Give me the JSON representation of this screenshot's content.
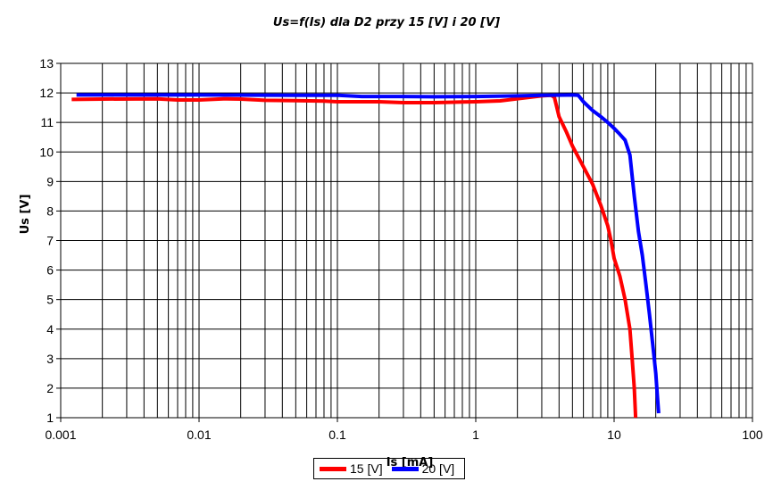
{
  "chart_data": {
    "type": "line",
    "title": "Us=f(Is) dla D2 przy 15 [V] i 20 [V]",
    "xlabel": "Is [mA]",
    "ylabel": "Us [V]",
    "x_scale": "log",
    "xlim": [
      0.001,
      100
    ],
    "ylim": [
      1,
      13
    ],
    "x_ticks": [
      "0.001",
      "0.01",
      "0.1",
      "1",
      "10",
      "100"
    ],
    "y_ticks": [
      "1",
      "2",
      "3",
      "4",
      "5",
      "6",
      "7",
      "8",
      "9",
      "10",
      "11",
      "12",
      "13"
    ],
    "grid": true,
    "legend_position": "bottom",
    "series": [
      {
        "name": "15 [V]",
        "color": "#ff0000",
        "points": [
          [
            0.0012,
            11.78
          ],
          [
            0.002,
            11.79
          ],
          [
            0.005,
            11.8
          ],
          [
            0.007,
            11.76
          ],
          [
            0.01,
            11.76
          ],
          [
            0.015,
            11.8
          ],
          [
            0.02,
            11.79
          ],
          [
            0.03,
            11.75
          ],
          [
            0.05,
            11.74
          ],
          [
            0.08,
            11.72
          ],
          [
            0.1,
            11.7
          ],
          [
            0.2,
            11.7
          ],
          [
            0.3,
            11.67
          ],
          [
            0.5,
            11.67
          ],
          [
            0.8,
            11.69
          ],
          [
            1.0,
            11.7
          ],
          [
            1.5,
            11.73
          ],
          [
            2.0,
            11.8
          ],
          [
            3.0,
            11.9
          ],
          [
            3.5,
            11.92
          ],
          [
            3.7,
            11.85
          ],
          [
            4.0,
            11.2
          ],
          [
            4.5,
            10.7
          ],
          [
            5.0,
            10.2
          ],
          [
            6.0,
            9.5
          ],
          [
            7.0,
            8.9
          ],
          [
            8.0,
            8.2
          ],
          [
            9.0,
            7.5
          ],
          [
            9.5,
            7.0
          ],
          [
            10.0,
            6.4
          ],
          [
            11.0,
            5.8
          ],
          [
            12.0,
            5.0
          ],
          [
            13.0,
            4.0
          ],
          [
            13.5,
            3.0
          ],
          [
            14.0,
            2.0
          ],
          [
            14.3,
            1.0
          ]
        ]
      },
      {
        "name": "20 [V]",
        "color": "#0000ff",
        "points": [
          [
            0.0013,
            11.93
          ],
          [
            0.01,
            11.93
          ],
          [
            0.05,
            11.92
          ],
          [
            0.1,
            11.92
          ],
          [
            0.15,
            11.88
          ],
          [
            0.3,
            11.88
          ],
          [
            0.5,
            11.87
          ],
          [
            1.0,
            11.88
          ],
          [
            2.0,
            11.9
          ],
          [
            3.0,
            11.92
          ],
          [
            5.0,
            11.93
          ],
          [
            5.5,
            11.92
          ],
          [
            6.0,
            11.7
          ],
          [
            7.0,
            11.4
          ],
          [
            8.0,
            11.2
          ],
          [
            9.0,
            11.0
          ],
          [
            10.0,
            10.8
          ],
          [
            11.0,
            10.6
          ],
          [
            12.0,
            10.4
          ],
          [
            13.0,
            9.9
          ],
          [
            14.0,
            8.5
          ],
          [
            15.0,
            7.3
          ],
          [
            16.0,
            6.5
          ],
          [
            17.0,
            5.5
          ],
          [
            18.0,
            4.5
          ],
          [
            19.0,
            3.5
          ],
          [
            20.0,
            2.5
          ],
          [
            20.5,
            1.8
          ],
          [
            21.0,
            1.15
          ]
        ]
      }
    ]
  }
}
